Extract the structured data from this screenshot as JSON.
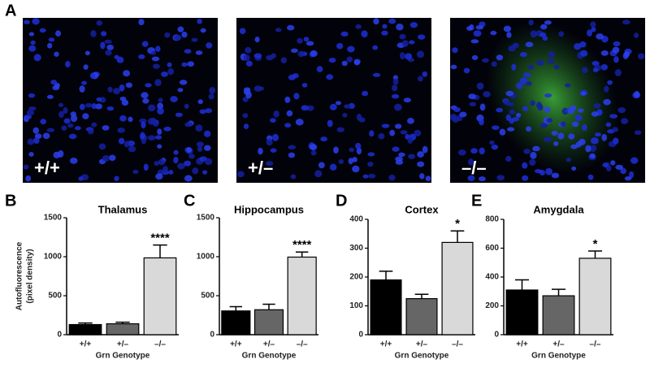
{
  "panel_labels": [
    "A",
    "B",
    "C",
    "D",
    "E"
  ],
  "image_labels": [
    "+/+",
    "+/–",
    "–/–"
  ],
  "chart_data": [
    {
      "type": "bar",
      "title": "Thalamus",
      "ylabel": [
        "Autofluorescence",
        "(pixel density)"
      ],
      "xlabel": "Grn Genotype",
      "categories": [
        "+/+",
        "+/–",
        "–/–"
      ],
      "values": [
        130,
        140,
        985
      ],
      "errors": [
        20,
        20,
        165
      ],
      "colors": [
        "#000000",
        "#666666",
        "#d9d9d9"
      ],
      "value_annotations": [
        null,
        null,
        "****"
      ],
      "ylim": [
        0,
        1500
      ],
      "yticks": [
        0,
        500,
        1000,
        1500
      ]
    },
    {
      "type": "bar",
      "title": "Hippocampus",
      "xlabel": "Grn Genotype",
      "categories": [
        "+/+",
        "+/–",
        "–/–"
      ],
      "values": [
        305,
        320,
        995
      ],
      "errors": [
        55,
        70,
        65
      ],
      "colors": [
        "#000000",
        "#666666",
        "#d9d9d9"
      ],
      "value_annotations": [
        null,
        null,
        "****"
      ],
      "ylim": [
        0,
        1500
      ],
      "yticks": [
        0,
        500,
        1000,
        1500
      ]
    },
    {
      "type": "bar",
      "title": "Cortex",
      "xlabel": "Grn Genotype",
      "categories": [
        "+/+",
        "+/–",
        "–/–"
      ],
      "values": [
        190,
        125,
        320
      ],
      "errors": [
        30,
        15,
        40
      ],
      "colors": [
        "#000000",
        "#666666",
        "#d9d9d9"
      ],
      "value_annotations": [
        null,
        null,
        "*"
      ],
      "ylim": [
        0,
        400
      ],
      "yticks": [
        0,
        100,
        200,
        300,
        400
      ]
    },
    {
      "type": "bar",
      "title": "Amygdala",
      "xlabel": "Grn Genotype",
      "categories": [
        "+/+",
        "+/–",
        "–/–"
      ],
      "values": [
        310,
        270,
        530
      ],
      "errors": [
        70,
        45,
        50
      ],
      "colors": [
        "#000000",
        "#666666",
        "#d9d9d9"
      ],
      "value_annotations": [
        null,
        null,
        "*"
      ],
      "ylim": [
        0,
        800
      ],
      "yticks": [
        0,
        200,
        400,
        600,
        800
      ]
    }
  ]
}
